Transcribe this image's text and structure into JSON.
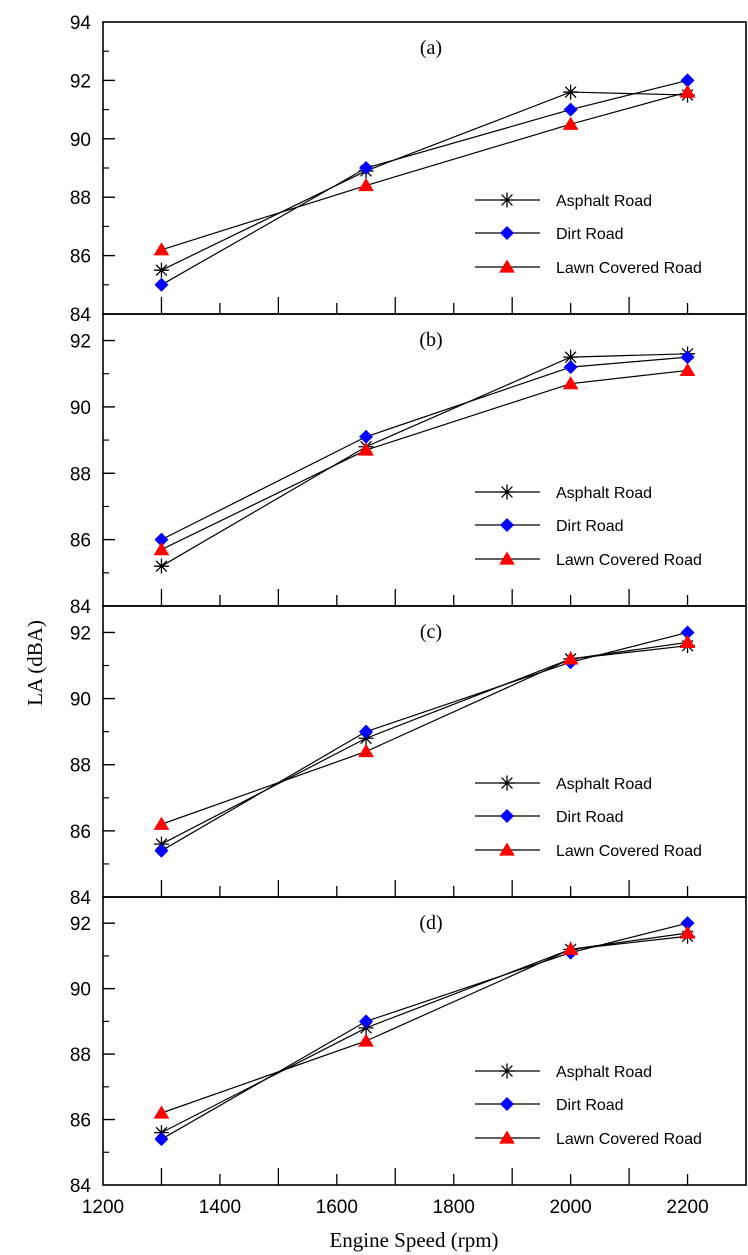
{
  "chart_data": [
    {
      "type": "line",
      "panel_label": "(a)",
      "x": [
        1300,
        1650,
        2000,
        2200
      ],
      "xlim": [
        1200,
        2300
      ],
      "ylim": [
        84,
        94
      ],
      "yticks": [
        84,
        86,
        88,
        90,
        92,
        94
      ],
      "series": [
        {
          "name": "Asphalt Road",
          "marker": "star",
          "color": "#000000",
          "values": [
            85.5,
            88.9,
            91.6,
            91.5
          ]
        },
        {
          "name": "Dirt Road",
          "marker": "diamond",
          "color": "#0000ff",
          "values": [
            85.0,
            89.0,
            91.0,
            92.0
          ]
        },
        {
          "name": "Lawn Covered Road",
          "marker": "triangle",
          "color": "#ff0000",
          "values": [
            86.2,
            88.4,
            90.5,
            91.6
          ]
        }
      ],
      "legend_position": "lower-right"
    },
    {
      "type": "line",
      "panel_label": "(b)",
      "x": [
        1300,
        1650,
        2000,
        2200
      ],
      "xlim": [
        1200,
        2300
      ],
      "ylim": [
        84,
        92.8
      ],
      "yticks": [
        84,
        86,
        88,
        90,
        92
      ],
      "series": [
        {
          "name": "Asphalt Road",
          "marker": "star",
          "color": "#000000",
          "values": [
            85.2,
            88.8,
            91.5,
            91.6
          ]
        },
        {
          "name": "Dirt Road",
          "marker": "diamond",
          "color": "#0000ff",
          "values": [
            86.0,
            89.1,
            91.2,
            91.5
          ]
        },
        {
          "name": "Lawn Covered Road",
          "marker": "triangle",
          "color": "#ff0000",
          "values": [
            85.7,
            88.7,
            90.7,
            91.1
          ]
        }
      ],
      "legend_position": "lower-right"
    },
    {
      "type": "line",
      "panel_label": "(c)",
      "x": [
        1300,
        1650,
        2000,
        2200
      ],
      "xlim": [
        1200,
        2300
      ],
      "ylim": [
        84,
        92.8
      ],
      "yticks": [
        84,
        86,
        88,
        90,
        92
      ],
      "series": [
        {
          "name": "Asphalt Road",
          "marker": "star",
          "color": "#000000",
          "values": [
            85.6,
            88.8,
            91.2,
            91.6
          ]
        },
        {
          "name": "Dirt Road",
          "marker": "diamond",
          "color": "#0000ff",
          "values": [
            85.4,
            89.0,
            91.1,
            92.0
          ]
        },
        {
          "name": "Lawn Covered Road",
          "marker": "triangle",
          "color": "#ff0000",
          "values": [
            86.2,
            88.4,
            91.2,
            91.7
          ]
        }
      ],
      "legend_position": "lower-right"
    },
    {
      "type": "line",
      "panel_label": "(d)",
      "x": [
        1300,
        1650,
        2000,
        2200
      ],
      "xlim": [
        1200,
        2300
      ],
      "ylim": [
        84,
        92.8
      ],
      "yticks": [
        84,
        86,
        88,
        90,
        92
      ],
      "xticks": [
        1200,
        1400,
        1600,
        1800,
        2000,
        2200
      ],
      "series": [
        {
          "name": "Asphalt Road",
          "marker": "star",
          "color": "#000000",
          "values": [
            85.6,
            88.8,
            91.2,
            91.6
          ]
        },
        {
          "name": "Dirt Road",
          "marker": "diamond",
          "color": "#0000ff",
          "values": [
            85.4,
            89.0,
            91.1,
            92.0
          ]
        },
        {
          "name": "Lawn Covered Road",
          "marker": "triangle",
          "color": "#ff0000",
          "values": [
            86.2,
            88.4,
            91.2,
            91.7
          ]
        }
      ],
      "legend_position": "lower-right"
    }
  ],
  "ylabel": "LA (dBA)",
  "xlabel": "Engine Speed (rpm)"
}
